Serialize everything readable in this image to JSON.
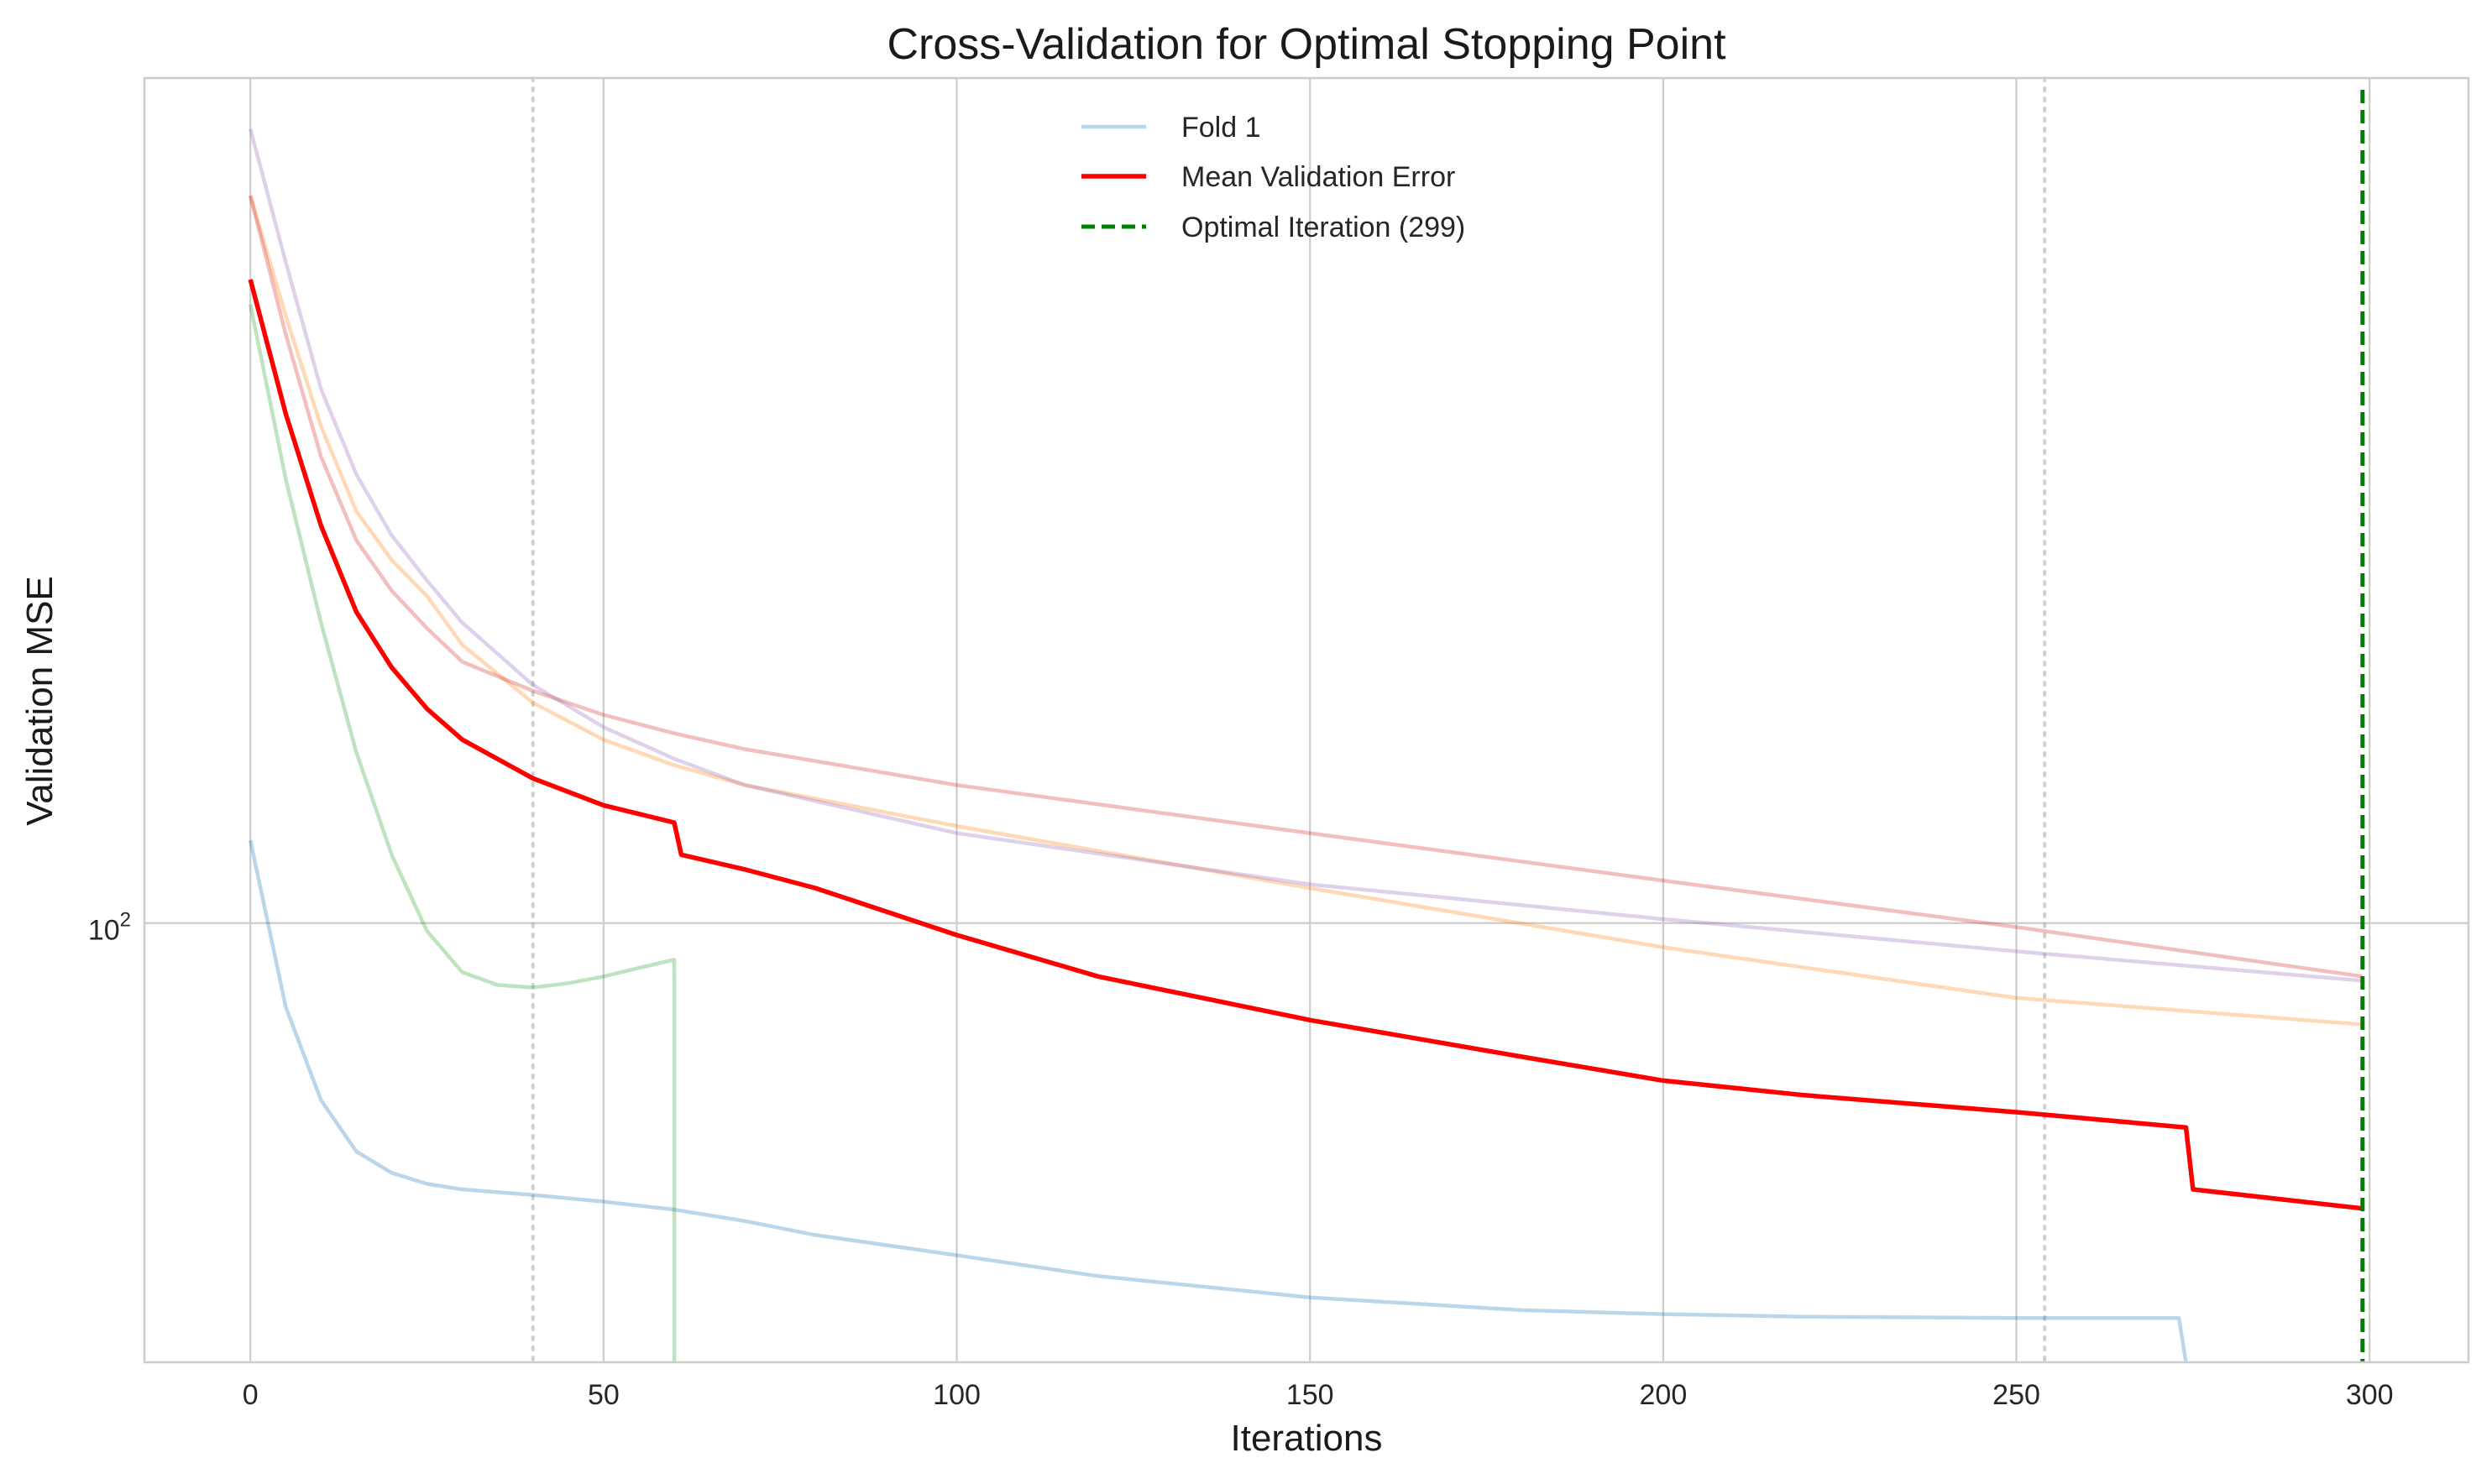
{
  "chart_data": {
    "type": "line",
    "title": "Cross-Validation for Optimal Stopping Point",
    "xlabel": "Iterations",
    "ylabel": "Validation MSE",
    "yscale": "log",
    "xlim": [
      -15,
      314
    ],
    "ylim": [
      57.5,
      290
    ],
    "grid": true,
    "legend_position": "top-center",
    "xticks": [
      0,
      50,
      100,
      150,
      200,
      250,
      300
    ],
    "yticks": [
      {
        "value": 100,
        "base": "10",
        "exp": "2"
      }
    ],
    "vlines_dotted": [
      40,
      254
    ],
    "colors": {
      "fold1": "#1f77b4",
      "fold2": "#ff7f0e",
      "fold3": "#2ca02c",
      "fold4": "#d62728",
      "fold5": "#9467bd",
      "mean": "#ff0000",
      "optimal": "#008000"
    },
    "series": [
      {
        "name": "Fold 1",
        "color_key": "fold1",
        "opacity": 0.3,
        "x": [
          0,
          5,
          10,
          15,
          20,
          25,
          30,
          40,
          50,
          60,
          70,
          80,
          100,
          120,
          150,
          180,
          200,
          220,
          250,
          273,
          274
        ],
        "y": [
          111,
          90,
          80,
          75,
          73,
          72,
          71.5,
          71,
          70.4,
          69.7,
          68.7,
          67.5,
          65.8,
          64.1,
          62.4,
          61.4,
          61.1,
          60.9,
          60.8,
          60.8,
          57.5
        ]
      },
      {
        "name": "",
        "color_key": "fold2",
        "opacity": 0.3,
        "x": [
          0,
          5,
          10,
          15,
          20,
          25,
          30,
          40,
          50,
          60,
          70,
          100,
          150,
          200,
          250,
          299
        ],
        "y": [
          250,
          215,
          187,
          168,
          158,
          151,
          142,
          132,
          126,
          122,
          119,
          113,
          104.5,
          97,
          91,
          88
        ]
      },
      {
        "name": "",
        "color_key": "fold3",
        "opacity": 0.3,
        "x": [
          0,
          5,
          10,
          15,
          20,
          25,
          30,
          35,
          40,
          45,
          50,
          55,
          60,
          60.01
        ],
        "y": [
          218,
          175,
          146,
          124,
          109,
          99,
          94,
          92.5,
          92.2,
          92.7,
          93.5,
          94.5,
          95.5,
          57.5
        ]
      },
      {
        "name": "",
        "color_key": "fold4",
        "opacity": 0.3,
        "x": [
          0,
          5,
          10,
          15,
          20,
          25,
          30,
          40,
          50,
          60,
          70,
          100,
          150,
          200,
          250,
          299
        ],
        "y": [
          250,
          210,
          180,
          162,
          152,
          145,
          139,
          134,
          130,
          127,
          124.5,
          119,
          112,
          105.5,
          99.5,
          93.5
        ]
      },
      {
        "name": "",
        "color_key": "fold5",
        "opacity": 0.3,
        "x": [
          0,
          5,
          10,
          15,
          20,
          25,
          30,
          40,
          50,
          60,
          70,
          100,
          150,
          200,
          250,
          299
        ],
        "y": [
          272,
          230,
          196,
          176,
          163,
          154,
          146,
          135,
          128,
          123,
          119,
          112,
          105,
          100.5,
          96.5,
          93
        ]
      },
      {
        "name": "Mean Validation Error",
        "color_key": "mean",
        "opacity": 1,
        "x": [
          0,
          5,
          10,
          15,
          20,
          25,
          30,
          40,
          50,
          60,
          61,
          70,
          80,
          100,
          120,
          150,
          180,
          200,
          220,
          250,
          274,
          275,
          299
        ],
        "y": [
          225,
          190,
          165,
          148,
          138,
          131,
          126,
          120,
          116,
          113.5,
          109,
          107,
          104.5,
          98.5,
          93.5,
          88.5,
          84.5,
          82,
          80.5,
          78.8,
          77.3,
          71.5,
          69.8
        ]
      }
    ],
    "optimal_line": {
      "name": "Optimal Iteration (299)",
      "x": 299,
      "color_key": "optimal"
    }
  }
}
